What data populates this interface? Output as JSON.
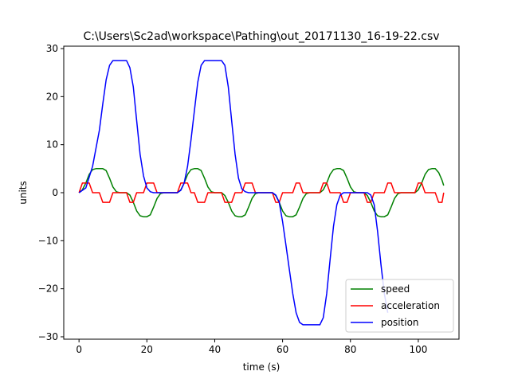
{
  "chart_data": {
    "type": "line",
    "title": "C:\\Users\\Sc2ad\\workspace\\Pathing\\out_20171130_16-19-22.csv",
    "xlabel": "time (s)",
    "ylabel": "units",
    "xlim": [
      -4.5,
      112
    ],
    "ylim": [
      -30.5,
      30.5
    ],
    "xticks": [
      0,
      20,
      40,
      60,
      80,
      100
    ],
    "yticks": [
      -30,
      -20,
      -10,
      0,
      10,
      20,
      30
    ],
    "legend": "lower-right",
    "grid": false,
    "series": [
      {
        "name": "speed",
        "color": "#008000",
        "points": [
          [
            0,
            0
          ],
          [
            1,
            0.6
          ],
          [
            2,
            2
          ],
          [
            3,
            3.8
          ],
          [
            4,
            4.8
          ],
          [
            5,
            5
          ],
          [
            7,
            5
          ],
          [
            8,
            4.6
          ],
          [
            9,
            3
          ],
          [
            10,
            1.2
          ],
          [
            11,
            0.2
          ],
          [
            12,
            0
          ],
          [
            14,
            0
          ],
          [
            15,
            -0.5
          ],
          [
            16,
            -2
          ],
          [
            17,
            -3.8
          ],
          [
            18,
            -4.8
          ],
          [
            19,
            -5
          ],
          [
            20,
            -5
          ],
          [
            21,
            -4.6
          ],
          [
            22,
            -3
          ],
          [
            23,
            -1.2
          ],
          [
            24,
            -0.2
          ],
          [
            25,
            0
          ],
          [
            29,
            0
          ],
          [
            30,
            0.6
          ],
          [
            31,
            2
          ],
          [
            32,
            3.8
          ],
          [
            33,
            4.8
          ],
          [
            34,
            5
          ],
          [
            35,
            5
          ],
          [
            36,
            4.6
          ],
          [
            37,
            3
          ],
          [
            38,
            1.2
          ],
          [
            39,
            0.2
          ],
          [
            40,
            0
          ],
          [
            42,
            0
          ],
          [
            43,
            -0.6
          ],
          [
            44,
            -2
          ],
          [
            45,
            -3.8
          ],
          [
            46,
            -4.8
          ],
          [
            47,
            -5
          ],
          [
            48,
            -5
          ],
          [
            49,
            -4.6
          ],
          [
            50,
            -3
          ],
          [
            51,
            -1.2
          ],
          [
            52,
            -0.2
          ],
          [
            53,
            0
          ],
          [
            57,
            0
          ],
          [
            58,
            -0.6
          ],
          [
            59,
            -2
          ],
          [
            60,
            -3.8
          ],
          [
            61,
            -4.8
          ],
          [
            62,
            -5
          ],
          [
            63,
            -5
          ],
          [
            64,
            -4.6
          ],
          [
            65,
            -3
          ],
          [
            66,
            -1.2
          ],
          [
            67,
            -0.2
          ],
          [
            68,
            0
          ],
          [
            71,
            0
          ],
          [
            72,
            0.6
          ],
          [
            73,
            2
          ],
          [
            74,
            3.8
          ],
          [
            75,
            4.8
          ],
          [
            76,
            5
          ],
          [
            77,
            5
          ],
          [
            78,
            4.6
          ],
          [
            79,
            3
          ],
          [
            80,
            1.2
          ],
          [
            81,
            0.2
          ],
          [
            82,
            0
          ],
          [
            84,
            0
          ],
          [
            85,
            -0.6
          ],
          [
            86,
            -2
          ],
          [
            87,
            -3.8
          ],
          [
            88,
            -4.8
          ],
          [
            89,
            -5
          ],
          [
            90,
            -5
          ],
          [
            91,
            -4.6
          ],
          [
            92,
            -3
          ],
          [
            93,
            -1.2
          ],
          [
            94,
            -0.2
          ],
          [
            95,
            0
          ],
          [
            99,
            0
          ],
          [
            100,
            0.6
          ],
          [
            101,
            2
          ],
          [
            102,
            3.8
          ],
          [
            103,
            4.8
          ],
          [
            104,
            5
          ],
          [
            105,
            5
          ],
          [
            106,
            4.2
          ],
          [
            107,
            2.6
          ],
          [
            107.5,
            1.5
          ]
        ]
      },
      {
        "name": "acceleration",
        "color": "#ff0000",
        "points": [
          [
            0,
            0
          ],
          [
            1,
            2
          ],
          [
            3,
            2
          ],
          [
            4,
            0
          ],
          [
            6,
            0
          ],
          [
            7,
            -2
          ],
          [
            9,
            -2
          ],
          [
            10,
            0
          ],
          [
            14,
            0
          ],
          [
            15,
            -2
          ],
          [
            16,
            -2
          ],
          [
            17,
            0
          ],
          [
            19,
            0
          ],
          [
            20,
            2
          ],
          [
            22,
            2
          ],
          [
            23,
            0
          ],
          [
            29,
            0
          ],
          [
            30,
            2
          ],
          [
            32,
            2
          ],
          [
            33,
            0
          ],
          [
            34,
            0
          ],
          [
            35,
            -2
          ],
          [
            37,
            -2
          ],
          [
            38,
            0
          ],
          [
            42,
            0
          ],
          [
            43,
            -2
          ],
          [
            45,
            -2
          ],
          [
            46,
            0
          ],
          [
            48,
            0
          ],
          [
            49,
            2
          ],
          [
            51,
            2
          ],
          [
            52,
            0
          ],
          [
            57,
            0
          ],
          [
            58,
            -2
          ],
          [
            59,
            -2
          ],
          [
            60,
            0
          ],
          [
            63,
            0
          ],
          [
            64,
            2
          ],
          [
            65,
            2
          ],
          [
            66,
            0
          ],
          [
            71,
            0
          ],
          [
            72,
            2
          ],
          [
            73,
            2
          ],
          [
            74,
            0
          ],
          [
            77,
            0
          ],
          [
            78,
            -2
          ],
          [
            79,
            -2
          ],
          [
            80,
            0
          ],
          [
            84,
            0
          ],
          [
            85,
            -2
          ],
          [
            86,
            -2
          ],
          [
            87,
            0
          ],
          [
            90,
            0
          ],
          [
            91,
            2
          ],
          [
            92,
            2
          ],
          [
            93,
            0
          ],
          [
            99,
            0
          ],
          [
            100,
            2
          ],
          [
            101,
            2
          ],
          [
            102,
            0
          ],
          [
            105,
            0
          ],
          [
            106,
            -2
          ],
          [
            107,
            -2
          ],
          [
            107.5,
            0
          ]
        ]
      },
      {
        "name": "position",
        "color": "#0000ff",
        "points": [
          [
            0,
            0
          ],
          [
            2,
            1
          ],
          [
            4,
            5.5
          ],
          [
            6,
            13
          ],
          [
            7,
            18.5
          ],
          [
            8,
            23.5
          ],
          [
            9,
            26.5
          ],
          [
            10,
            27.5
          ],
          [
            14,
            27.5
          ],
          [
            15,
            26
          ],
          [
            16,
            22
          ],
          [
            17,
            15
          ],
          [
            18,
            8
          ],
          [
            19,
            3.5
          ],
          [
            20,
            1
          ],
          [
            21,
            0.2
          ],
          [
            22,
            0
          ],
          [
            29,
            0
          ],
          [
            30,
            0.5
          ],
          [
            31,
            2
          ],
          [
            32,
            5.5
          ],
          [
            33,
            11
          ],
          [
            34,
            17
          ],
          [
            35,
            23
          ],
          [
            36,
            26.5
          ],
          [
            37,
            27.5
          ],
          [
            42,
            27.5
          ],
          [
            43,
            26.5
          ],
          [
            44,
            22
          ],
          [
            45,
            15
          ],
          [
            46,
            8
          ],
          [
            47,
            3
          ],
          [
            48,
            0.8
          ],
          [
            49,
            0.2
          ],
          [
            50,
            0
          ],
          [
            57,
            0
          ],
          [
            58,
            -0.5
          ],
          [
            59,
            -2
          ],
          [
            60,
            -6
          ],
          [
            61,
            -11
          ],
          [
            62,
            -16
          ],
          [
            63,
            -21
          ],
          [
            64,
            -25
          ],
          [
            65,
            -27
          ],
          [
            66,
            -27.5
          ],
          [
            71,
            -27.5
          ],
          [
            72,
            -26
          ],
          [
            73,
            -21
          ],
          [
            74,
            -14
          ],
          [
            75,
            -7
          ],
          [
            76,
            -2.5
          ],
          [
            77,
            -0.5
          ],
          [
            78,
            0
          ],
          [
            85,
            0
          ],
          [
            86,
            -0.5
          ],
          [
            87,
            -2.5
          ],
          [
            88,
            -8
          ],
          [
            89,
            -15
          ],
          [
            90,
            -21
          ],
          [
            91,
            -25
          ]
        ]
      }
    ]
  }
}
